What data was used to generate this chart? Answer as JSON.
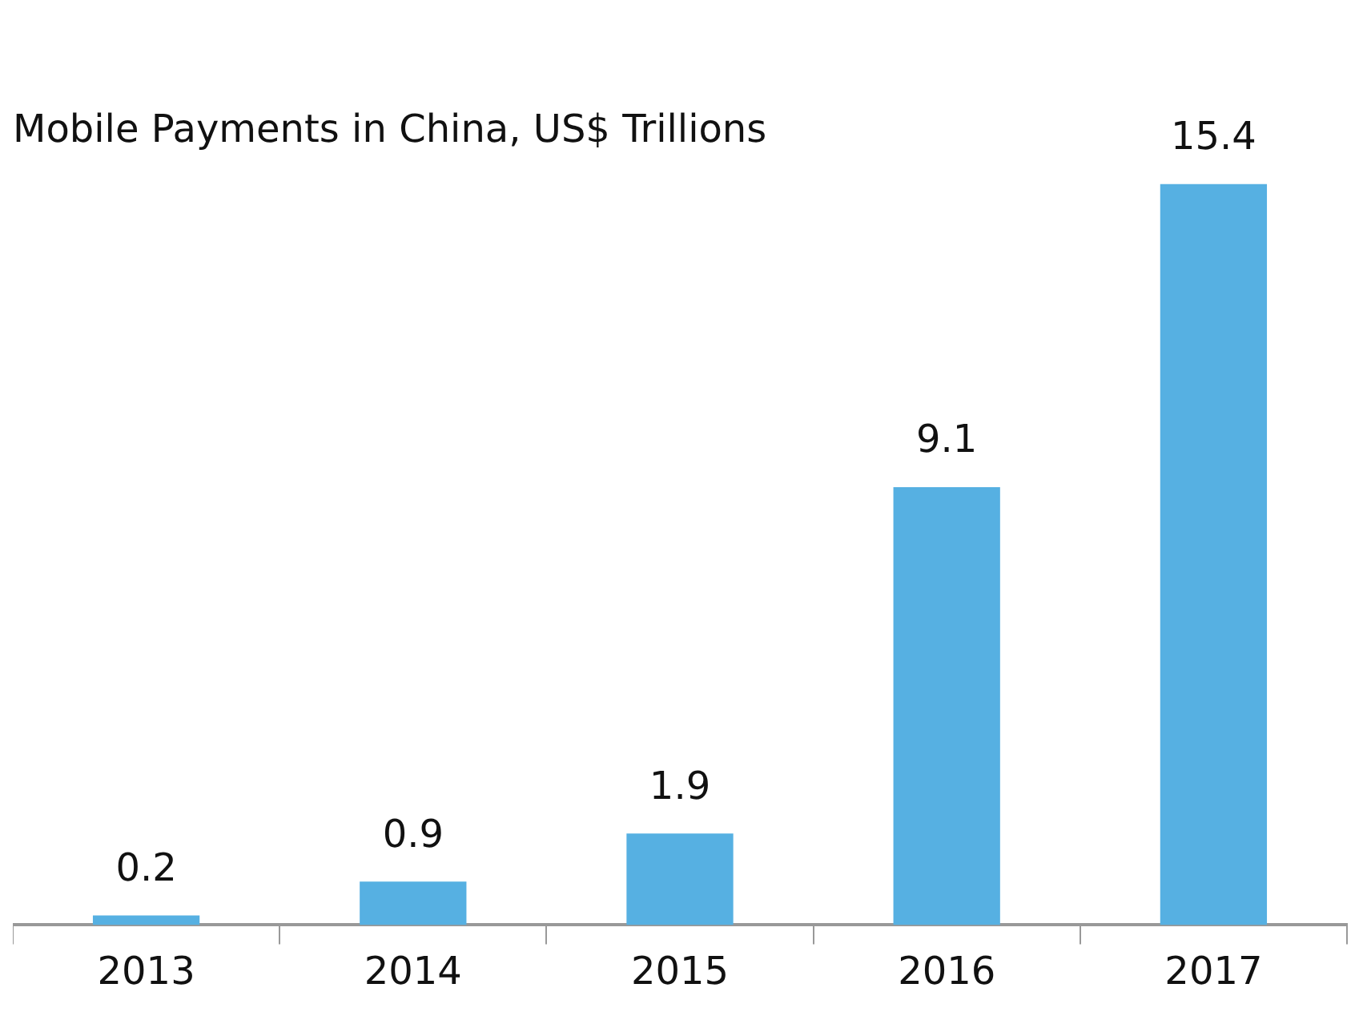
{
  "chart_data": {
    "type": "bar",
    "title": "Mobile Payments in China, US$ Trillions",
    "categories": [
      "2013",
      "2014",
      "2015",
      "2016",
      "2017"
    ],
    "values": [
      0.2,
      0.9,
      1.9,
      9.1,
      15.4
    ],
    "color": "#56b0e2",
    "data_labels": true,
    "grid": false,
    "legend": false
  }
}
